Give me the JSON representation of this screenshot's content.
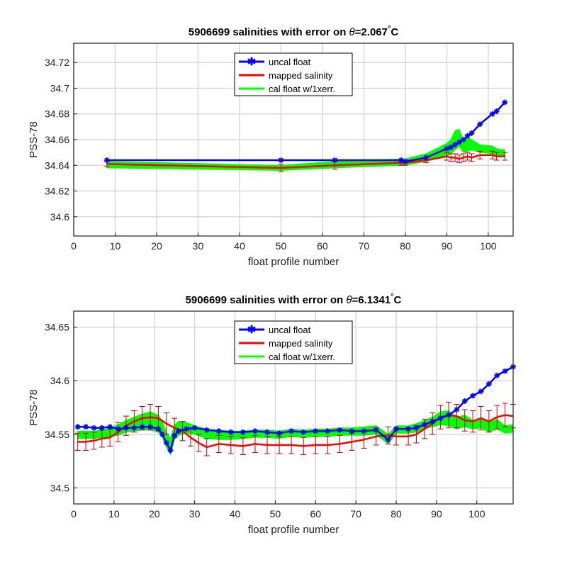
{
  "chart_data": [
    {
      "type": "line",
      "title_prefix": "5906699 salinities with error on ",
      "title_theta": "θ",
      "title_value": "=2.067",
      "title_deg": "°",
      "title_unit": "C",
      "xlabel": "float profile number",
      "ylabel": "PSS-78",
      "xlim": [
        0,
        106
      ],
      "ylim": [
        34.585,
        34.735
      ],
      "xticks": [
        0,
        10,
        20,
        30,
        40,
        50,
        60,
        70,
        80,
        90,
        100
      ],
      "yticks": [
        34.6,
        34.62,
        34.64,
        34.66,
        34.68,
        34.7,
        34.72
      ],
      "ytick_labels": [
        "34.6",
        "34.62",
        "34.64",
        "34.66",
        "34.68",
        "34.7",
        "34.72"
      ],
      "grid": true,
      "legend": [
        "uncal float",
        "mapped salinity",
        "cal float w/1xerr."
      ],
      "legend_position": "top-center",
      "colors": {
        "uncal": "#0000ff",
        "mapped": "#ff0000",
        "cal": "#00ff00",
        "err": "#cc0000"
      },
      "series": [
        {
          "name": "uncal float",
          "x": [
            8,
            50,
            63,
            79,
            80,
            85,
            90,
            91,
            92,
            93,
            94,
            95,
            96,
            98,
            101,
            102,
            104
          ],
          "y": [
            34.644,
            34.644,
            34.644,
            34.644,
            34.643,
            34.646,
            34.653,
            34.654,
            34.656,
            34.658,
            34.66,
            34.663,
            34.665,
            34.672,
            34.68,
            34.682,
            34.689
          ]
        },
        {
          "name": "mapped salinity",
          "x": [
            8,
            50,
            63,
            79,
            80,
            85,
            90,
            91,
            92,
            93,
            94,
            95,
            96,
            98,
            101,
            102,
            104
          ],
          "y": [
            34.641,
            34.638,
            34.64,
            34.642,
            34.642,
            34.644,
            34.647,
            34.646,
            34.646,
            34.645,
            34.646,
            34.647,
            34.646,
            34.648,
            34.648,
            34.647,
            34.647
          ],
          "err": [
            0.002,
            0.003,
            0.003,
            0.002,
            0.002,
            0.002,
            0.003,
            0.003,
            0.003,
            0.003,
            0.003,
            0.003,
            0.003,
            0.003,
            0.003,
            0.003,
            0.003
          ]
        },
        {
          "name": "cal float w/1xerr.",
          "x": [
            8,
            50,
            63,
            79,
            80,
            85,
            90,
            91,
            92,
            93,
            94,
            95,
            96,
            98,
            101,
            102,
            104
          ],
          "lower": [
            34.638,
            34.636,
            34.638,
            34.64,
            34.64,
            34.643,
            34.647,
            34.649,
            34.652,
            34.655,
            34.65,
            34.651,
            34.652,
            34.65,
            34.649,
            34.648,
            34.647
          ],
          "upper": [
            34.643,
            34.64,
            34.643,
            34.645,
            34.645,
            34.649,
            34.657,
            34.66,
            34.667,
            34.668,
            34.66,
            34.662,
            34.66,
            34.656,
            34.655,
            34.653,
            34.652
          ]
        }
      ]
    },
    {
      "type": "line",
      "title_prefix": "5906699 salinities with error on ",
      "title_theta": "θ",
      "title_value": "=6.1341",
      "title_deg": "°",
      "title_unit": "C",
      "xlabel": "float profile number",
      "ylabel": "PSS-78",
      "xlim": [
        0,
        109
      ],
      "ylim": [
        34.485,
        34.665
      ],
      "xticks": [
        0,
        10,
        20,
        30,
        40,
        50,
        60,
        70,
        80,
        90,
        100
      ],
      "yticks": [
        34.5,
        34.55,
        34.6,
        34.65
      ],
      "ytick_labels": [
        "34.5",
        "34.55",
        "34.6",
        "34.65"
      ],
      "grid": true,
      "legend": [
        "uncal float",
        "mapped salinity",
        "cal float w/1xerr."
      ],
      "legend_position": "top-center",
      "colors": {
        "uncal": "#0000ff",
        "mapped": "#ff0000",
        "cal": "#00ff00",
        "err": "#cc0000"
      },
      "series": [
        {
          "name": "uncal float",
          "x": [
            1,
            3,
            5,
            7,
            9,
            11,
            13,
            15,
            17,
            19,
            21,
            22,
            23,
            24,
            25,
            26,
            28,
            30,
            33,
            36,
            39,
            42,
            45,
            48,
            51,
            54,
            57,
            60,
            63,
            66,
            69,
            72,
            75,
            78,
            80,
            83,
            85,
            87,
            89,
            91,
            93,
            95,
            97,
            99,
            101,
            103,
            105,
            107,
            109
          ],
          "y": [
            34.557,
            34.557,
            34.556,
            34.556,
            34.557,
            34.555,
            34.556,
            34.556,
            34.557,
            34.557,
            34.555,
            34.55,
            34.542,
            34.535,
            34.549,
            34.553,
            34.555,
            34.556,
            34.554,
            34.553,
            34.552,
            34.552,
            34.553,
            34.552,
            34.551,
            34.553,
            34.552,
            34.553,
            34.553,
            34.554,
            34.553,
            34.553,
            34.554,
            34.545,
            34.555,
            34.555,
            34.556,
            34.559,
            34.562,
            34.565,
            34.568,
            34.573,
            34.581,
            34.586,
            34.59,
            34.597,
            34.605,
            34.609,
            34.613
          ]
        },
        {
          "name": "mapped salinity",
          "x": [
            1,
            3,
            5,
            7,
            9,
            11,
            13,
            15,
            17,
            19,
            21,
            23,
            25,
            27,
            29,
            31,
            33,
            36,
            39,
            42,
            45,
            48,
            51,
            54,
            57,
            60,
            63,
            66,
            69,
            72,
            75,
            78,
            80,
            83,
            85,
            87,
            89,
            91,
            93,
            95,
            97,
            99,
            101,
            103,
            105,
            107,
            109
          ],
          "y": [
            34.543,
            34.543,
            34.544,
            34.546,
            34.547,
            34.552,
            34.558,
            34.562,
            34.565,
            34.566,
            34.565,
            34.56,
            34.556,
            34.553,
            34.547,
            34.542,
            34.538,
            34.541,
            34.54,
            34.539,
            34.541,
            34.54,
            34.54,
            34.54,
            34.539,
            34.54,
            34.54,
            34.541,
            34.543,
            34.545,
            34.548,
            34.549,
            34.548,
            34.548,
            34.55,
            34.555,
            34.56,
            34.566,
            34.568,
            34.567,
            34.563,
            34.562,
            34.565,
            34.562,
            34.566,
            34.568,
            34.567
          ],
          "err": [
            0.008,
            0.008,
            0.008,
            0.008,
            0.008,
            0.009,
            0.009,
            0.01,
            0.011,
            0.012,
            0.011,
            0.01,
            0.009,
            0.009,
            0.008,
            0.008,
            0.008,
            0.008,
            0.008,
            0.008,
            0.008,
            0.008,
            0.008,
            0.008,
            0.008,
            0.008,
            0.008,
            0.008,
            0.008,
            0.008,
            0.008,
            0.008,
            0.008,
            0.008,
            0.008,
            0.009,
            0.01,
            0.011,
            0.012,
            0.011,
            0.01,
            0.01,
            0.011,
            0.01,
            0.011,
            0.011,
            0.011
          ]
        },
        {
          "name": "cal float w/1xerr.",
          "x": [
            1,
            3,
            5,
            7,
            9,
            11,
            13,
            15,
            17,
            19,
            21,
            22,
            23,
            24,
            25,
            26,
            28,
            30,
            33,
            36,
            39,
            42,
            45,
            48,
            51,
            54,
            57,
            60,
            63,
            66,
            69,
            72,
            75,
            78,
            80,
            83,
            85,
            87,
            89,
            91,
            93,
            95,
            97,
            99,
            101,
            103,
            105,
            107,
            109
          ],
          "lower": [
            34.546,
            34.546,
            34.546,
            34.547,
            34.548,
            34.549,
            34.552,
            34.553,
            34.554,
            34.554,
            34.552,
            34.547,
            34.538,
            34.531,
            34.545,
            34.549,
            34.551,
            34.55,
            34.546,
            34.545,
            34.545,
            34.546,
            34.547,
            34.547,
            34.546,
            34.548,
            34.547,
            34.548,
            34.548,
            34.549,
            34.549,
            34.549,
            34.55,
            34.541,
            34.551,
            34.551,
            34.552,
            34.555,
            34.557,
            34.559,
            34.558,
            34.555,
            34.557,
            34.555,
            34.556,
            34.552,
            34.555,
            34.551,
            34.552
          ],
          "upper": [
            34.553,
            34.553,
            34.553,
            34.554,
            34.556,
            34.559,
            34.563,
            34.566,
            34.569,
            34.571,
            34.568,
            34.562,
            34.552,
            34.546,
            34.559,
            34.562,
            34.561,
            34.558,
            34.555,
            34.554,
            34.553,
            34.553,
            34.554,
            34.554,
            34.553,
            34.555,
            34.554,
            34.555,
            34.555,
            34.556,
            34.556,
            34.557,
            34.558,
            34.55,
            34.558,
            34.558,
            34.56,
            34.563,
            34.566,
            34.571,
            34.572,
            34.566,
            34.568,
            34.563,
            34.565,
            34.561,
            34.564,
            34.558,
            34.559
          ]
        }
      ]
    }
  ]
}
